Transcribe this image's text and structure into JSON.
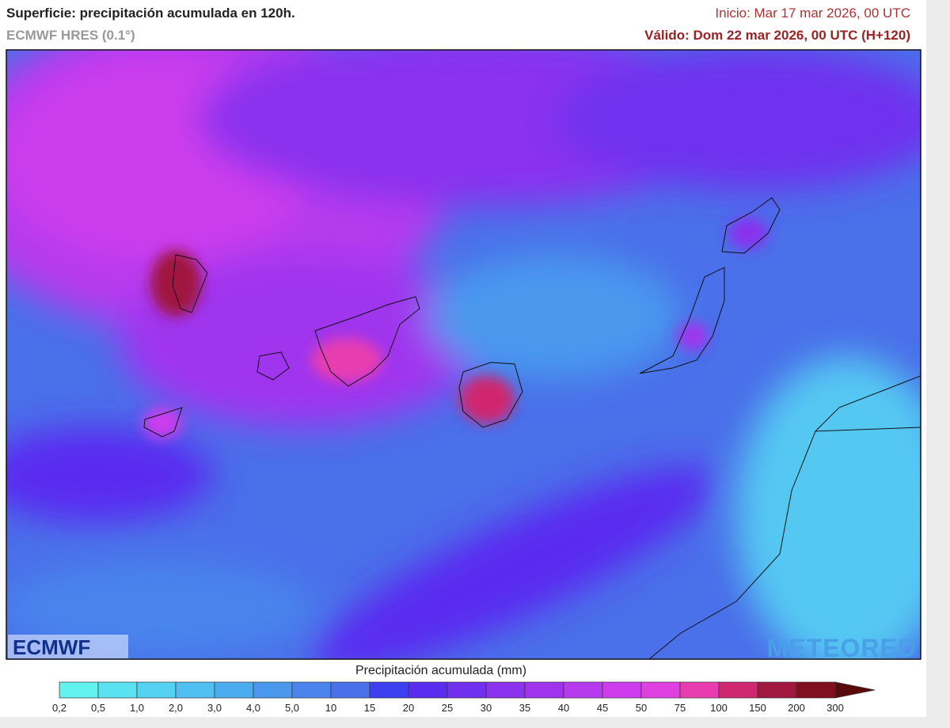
{
  "header": {
    "title": "Superficie: precipitación acumulada en 120h.",
    "model": "ECMWF HRES (0.1°)",
    "init": "Inicio: Mar 17 mar 2026, 00 UTC",
    "valid": "Válido: Dom 22 mar 2026, 00 UTC (H+120)"
  },
  "logos": {
    "left": "ECMWF",
    "right": "METEORED"
  },
  "legend": {
    "title": "Precipitación acumulada (mm)",
    "ticks": [
      "0,2",
      "0,5",
      "1,0",
      "2,0",
      "3,0",
      "4,0",
      "5,0",
      "10",
      "15",
      "20",
      "25",
      "30",
      "35",
      "40",
      "45",
      "50",
      "75",
      "100",
      "150",
      "200",
      "300"
    ],
    "colors": [
      "#62f2ee",
      "#5ae2f0",
      "#55d2f2",
      "#50c0f2",
      "#4cacf0",
      "#4a98ee",
      "#4a84ec",
      "#4a70ea",
      "#3c40f0",
      "#5a2cf0",
      "#7030ee",
      "#8a32ee",
      "#a034ee",
      "#b63aee",
      "#cc3cec",
      "#e040e0",
      "#e83cb0",
      "#d02870",
      "#a01840",
      "#801020"
    ],
    "arrow_color": "#5a0a0a"
  }
}
